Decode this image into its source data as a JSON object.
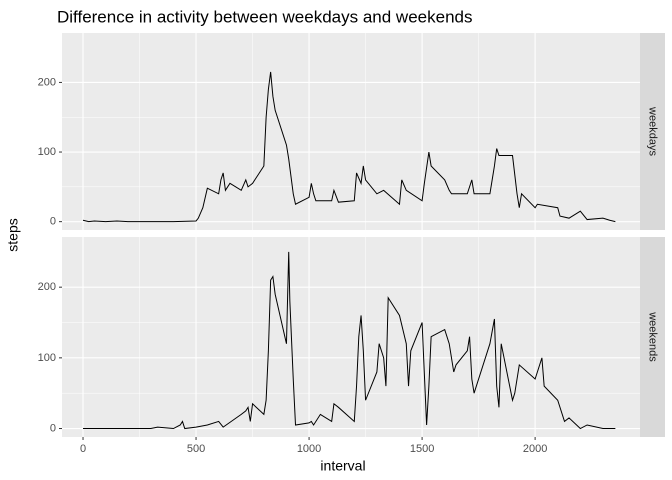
{
  "chart_data": {
    "type": "line",
    "title": "Difference in activity between weekdays and weekends",
    "x_label": "interval",
    "y_label": "steps",
    "xlim": [
      -93,
      2464
    ],
    "ylim": [
      -12,
      271
    ],
    "xticks": [
      0,
      500,
      1000,
      1500,
      2000
    ],
    "yticks": [
      0,
      100,
      200
    ],
    "grid": true,
    "series": [
      {
        "name": "weekdays",
        "color": "#000000",
        "x": [
          0,
          25,
          50,
          100,
          150,
          200,
          300,
          400,
          500,
          510,
          530,
          550,
          600,
          610,
          620,
          630,
          650,
          700,
          720,
          730,
          750,
          800,
          810,
          820,
          830,
          840,
          850,
          900,
          910,
          930,
          940,
          1000,
          1010,
          1020,
          1030,
          1100,
          1110,
          1130,
          1200,
          1210,
          1230,
          1240,
          1250,
          1300,
          1330,
          1400,
          1410,
          1430,
          1500,
          1510,
          1530,
          1540,
          1600,
          1620,
          1630,
          1700,
          1720,
          1730,
          1800,
          1810,
          1820,
          1830,
          1840,
          1900,
          1920,
          1930,
          1940,
          2000,
          2010,
          2100,
          2110,
          2150,
          2200,
          2230,
          2300,
          2330,
          2355
        ],
        "values": [
          2,
          0,
          1,
          0,
          1,
          0,
          0,
          0,
          1,
          5,
          20,
          48,
          40,
          60,
          70,
          45,
          55,
          45,
          60,
          50,
          55,
          80,
          150,
          190,
          215,
          180,
          160,
          110,
          90,
          40,
          25,
          35,
          55,
          40,
          30,
          30,
          45,
          28,
          30,
          70,
          55,
          80,
          60,
          40,
          45,
          25,
          60,
          45,
          30,
          55,
          100,
          80,
          60,
          45,
          40,
          40,
          60,
          40,
          40,
          60,
          80,
          105,
          95,
          95,
          40,
          20,
          40,
          20,
          25,
          20,
          8,
          5,
          15,
          3,
          5,
          2,
          0
        ]
      },
      {
        "name": "weekends",
        "color": "#000000",
        "x": [
          0,
          100,
          200,
          300,
          330,
          400,
          430,
          440,
          450,
          500,
          550,
          600,
          620,
          700,
          720,
          730,
          740,
          750,
          800,
          810,
          820,
          830,
          840,
          850,
          900,
          910,
          915,
          930,
          940,
          1000,
          1010,
          1020,
          1050,
          1100,
          1110,
          1130,
          1200,
          1210,
          1220,
          1230,
          1240,
          1250,
          1300,
          1310,
          1330,
          1340,
          1350,
          1400,
          1430,
          1440,
          1450,
          1500,
          1520,
          1530,
          1540,
          1600,
          1620,
          1640,
          1650,
          1700,
          1710,
          1720,
          1730,
          1800,
          1820,
          1830,
          1840,
          1850,
          1900,
          1910,
          1930,
          2000,
          2010,
          2030,
          2040,
          2100,
          2130,
          2150,
          2200,
          2230,
          2300,
          2355
        ],
        "values": [
          0,
          0,
          0,
          0,
          2,
          0,
          5,
          10,
          0,
          2,
          5,
          10,
          2,
          20,
          25,
          30,
          10,
          35,
          20,
          40,
          110,
          210,
          215,
          190,
          120,
          250,
          180,
          70,
          5,
          8,
          10,
          5,
          20,
          10,
          35,
          30,
          10,
          60,
          130,
          160,
          110,
          40,
          80,
          120,
          100,
          60,
          185,
          160,
          120,
          60,
          110,
          150,
          5,
          60,
          130,
          140,
          120,
          80,
          90,
          110,
          130,
          70,
          50,
          120,
          155,
          60,
          30,
          120,
          40,
          50,
          90,
          70,
          80,
          100,
          60,
          40,
          10,
          15,
          0,
          5,
          0,
          0
        ]
      }
    ]
  }
}
